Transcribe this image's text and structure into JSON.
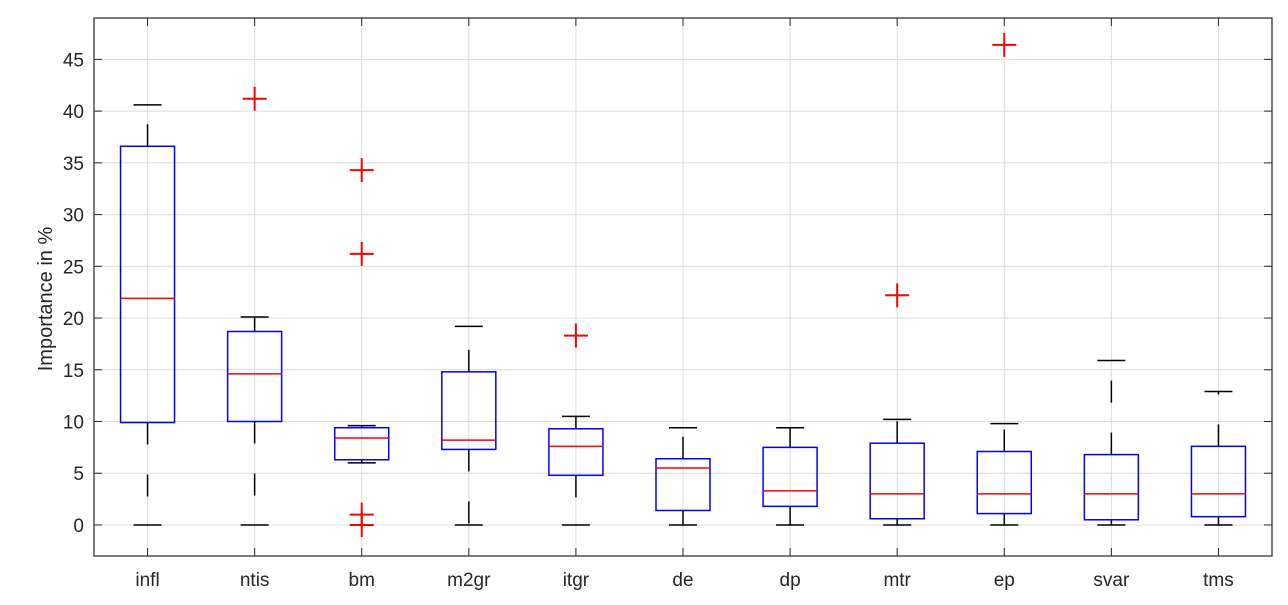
{
  "chart_data": {
    "type": "boxplot",
    "title": "",
    "xlabel": "",
    "ylabel": "Importance in %",
    "ylim": [
      -3,
      49
    ],
    "yticks": [
      0,
      5,
      10,
      15,
      20,
      25,
      30,
      35,
      40,
      45
    ],
    "grid": true,
    "categories": [
      "infl",
      "ntis",
      "bm",
      "m2gr",
      "itgr",
      "de",
      "dp",
      "mtr",
      "ep",
      "svar",
      "tms"
    ],
    "boxes": [
      {
        "label": "infl",
        "whisker_low": 0.0,
        "q1": 9.9,
        "median": 21.9,
        "q3": 36.6,
        "whisker_high": 40.6,
        "outliers": []
      },
      {
        "label": "ntis",
        "whisker_low": 0.0,
        "q1": 10.0,
        "median": 14.6,
        "q3": 18.7,
        "whisker_high": 20.1,
        "outliers": [
          41.2
        ]
      },
      {
        "label": "bm",
        "whisker_low": 6.0,
        "q1": 6.3,
        "median": 8.4,
        "q3": 9.4,
        "whisker_high": 9.6,
        "outliers": [
          34.3,
          26.2,
          1.0,
          0.0
        ]
      },
      {
        "label": "m2gr",
        "whisker_low": 0.0,
        "q1": 7.3,
        "median": 8.2,
        "q3": 14.8,
        "whisker_high": 19.2,
        "outliers": []
      },
      {
        "label": "itgr",
        "whisker_low": 0.0,
        "q1": 4.8,
        "median": 7.6,
        "q3": 9.3,
        "whisker_high": 10.5,
        "outliers": [
          18.3
        ]
      },
      {
        "label": "de",
        "whisker_low": 0.0,
        "q1": 1.4,
        "median": 5.5,
        "q3": 6.4,
        "whisker_high": 9.4,
        "outliers": []
      },
      {
        "label": "dp",
        "whisker_low": 0.0,
        "q1": 1.8,
        "median": 3.3,
        "q3": 7.5,
        "whisker_high": 9.4,
        "outliers": []
      },
      {
        "label": "mtr",
        "whisker_low": 0.0,
        "q1": 0.6,
        "median": 3.0,
        "q3": 7.9,
        "whisker_high": 10.2,
        "outliers": [
          22.2
        ]
      },
      {
        "label": "ep",
        "whisker_low": 0.0,
        "q1": 1.1,
        "median": 3.0,
        "q3": 7.1,
        "whisker_high": 9.8,
        "outliers": [
          46.4
        ]
      },
      {
        "label": "svar",
        "whisker_low": 0.0,
        "q1": 0.5,
        "median": 3.0,
        "q3": 6.8,
        "whisker_high": 15.9,
        "outliers": []
      },
      {
        "label": "tms",
        "whisker_low": 0.0,
        "q1": 0.8,
        "median": 3.0,
        "q3": 7.6,
        "whisker_high": 12.9,
        "outliers": []
      }
    ],
    "colors": {
      "box": "#0000ff",
      "median": "#ff0000",
      "whisker": "#000000",
      "outlier": "#ff0000",
      "grid": "#dcdcdc",
      "axis": "#262626"
    }
  }
}
